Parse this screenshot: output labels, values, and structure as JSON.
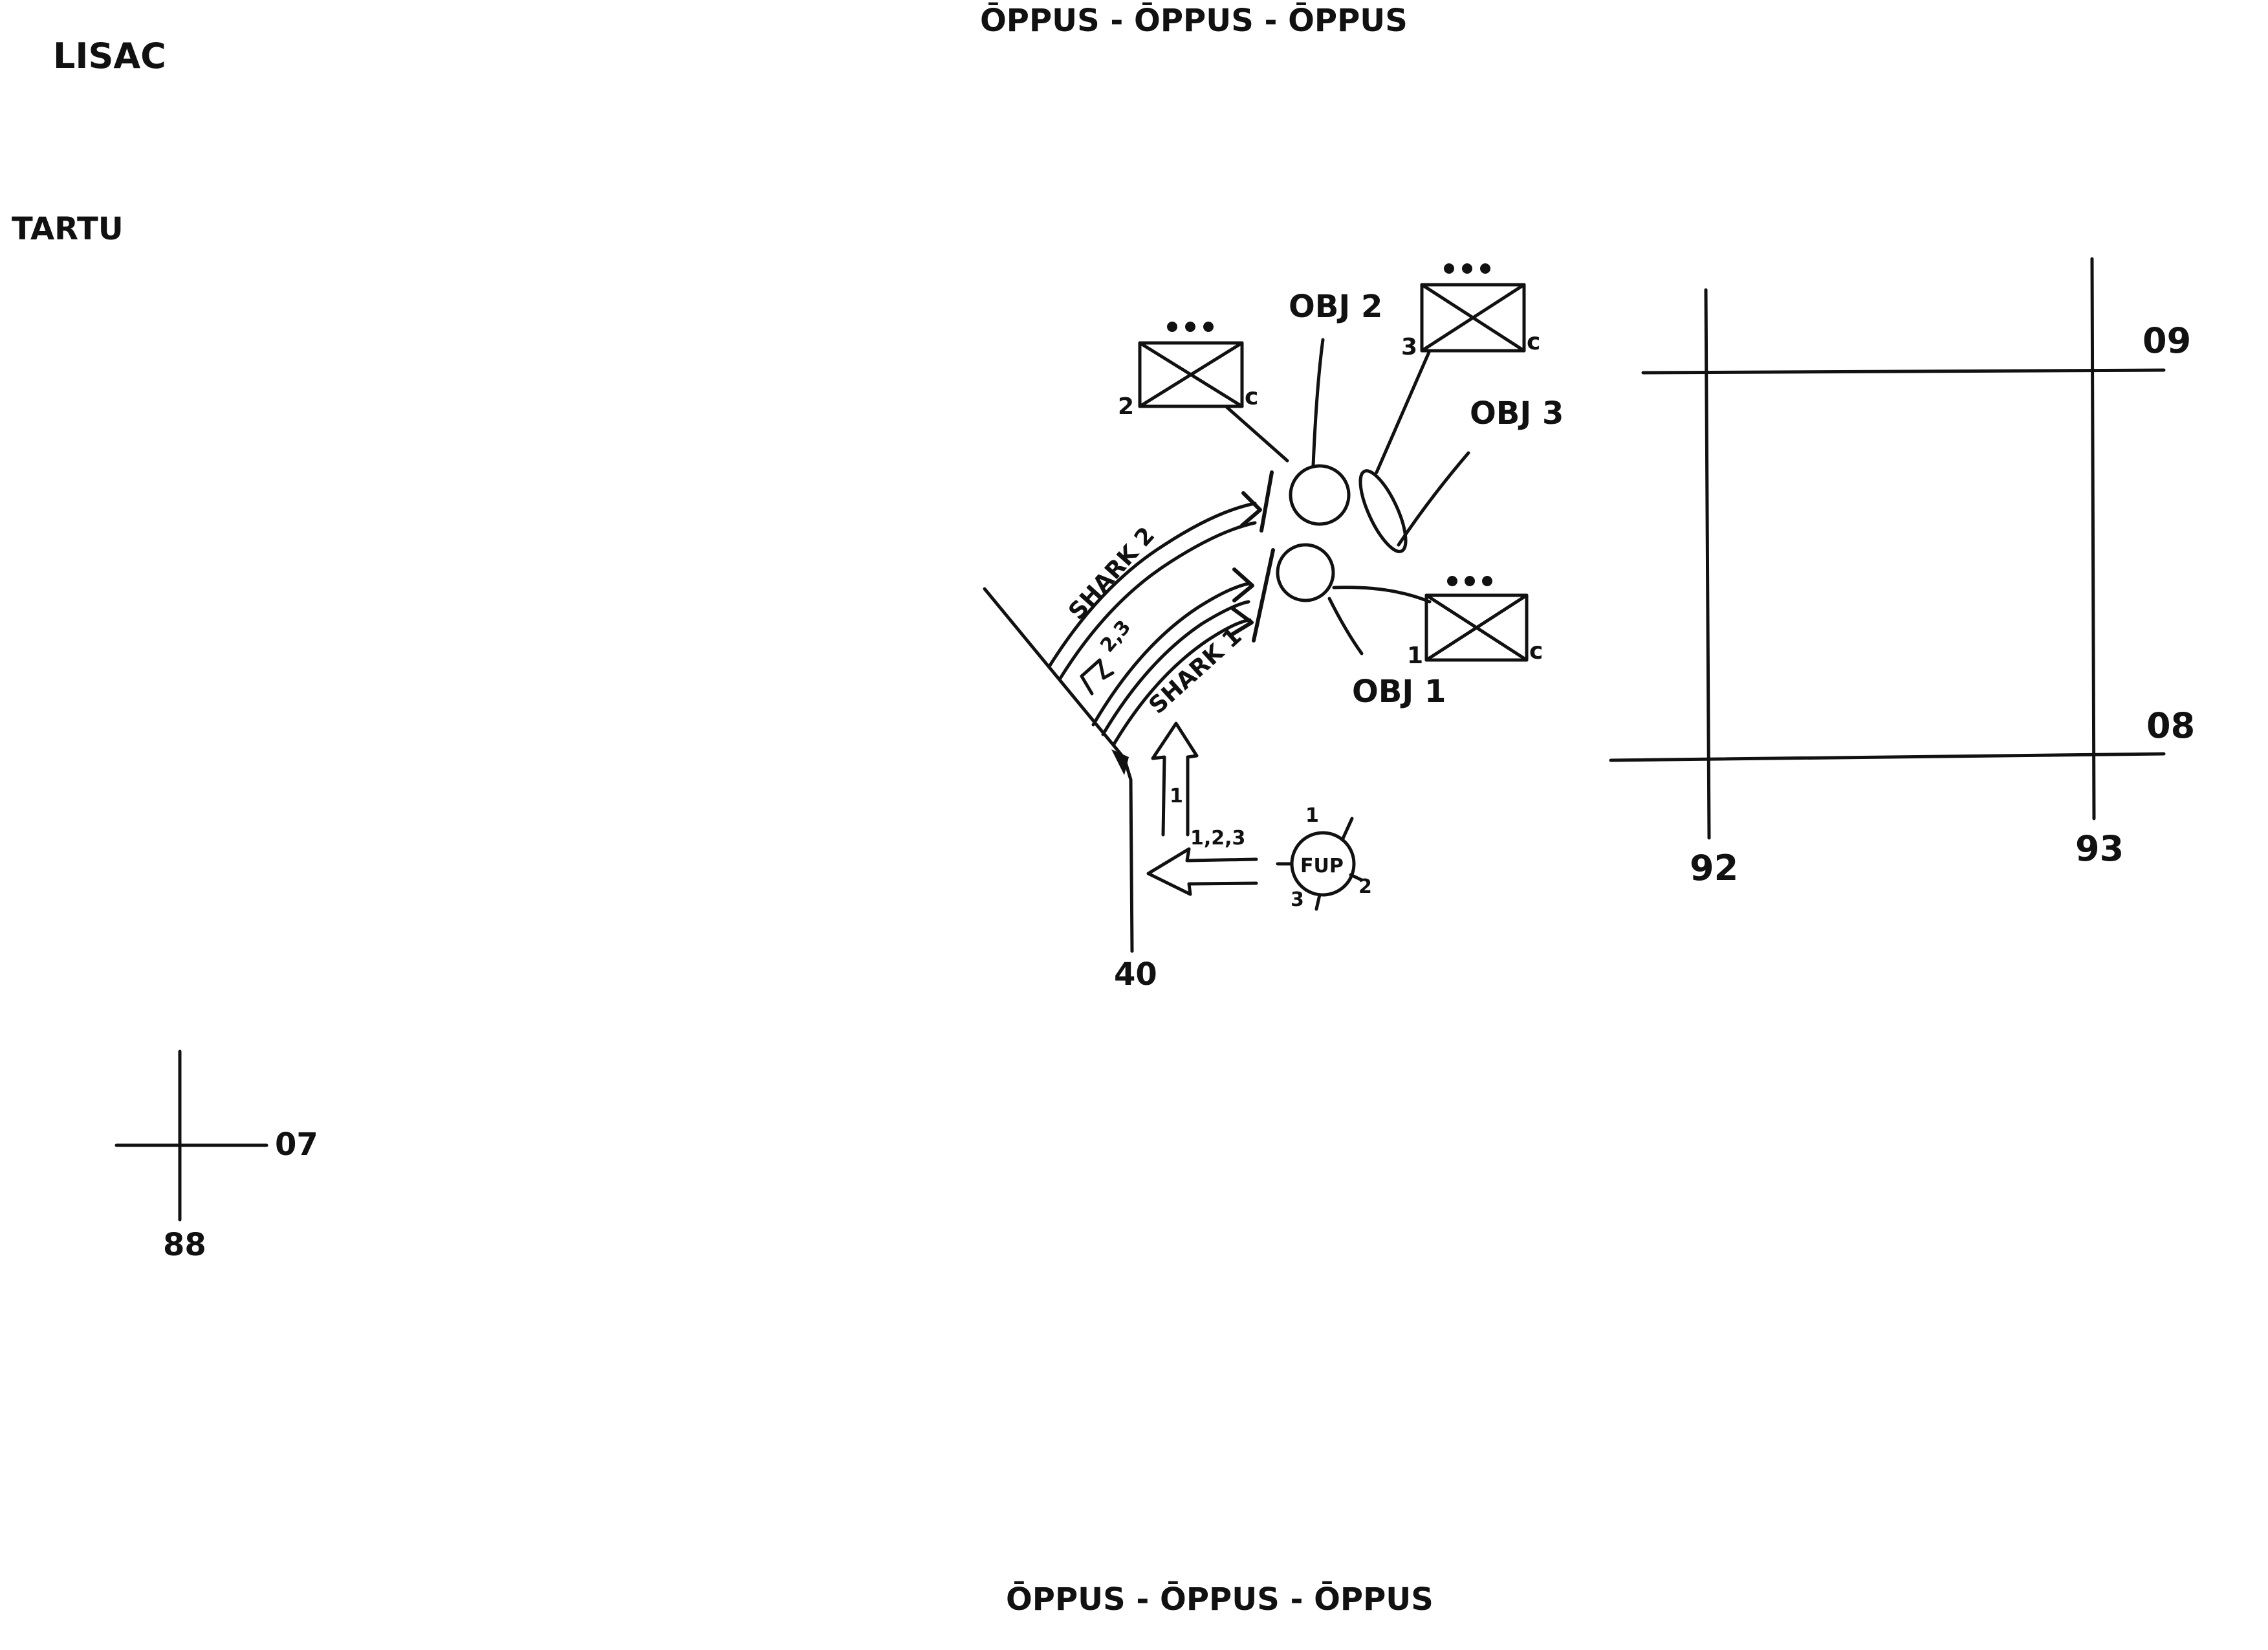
{
  "header": {
    "top_banner": "ŌPPUS - ŌPPUS - ŌPPUS"
  },
  "footer": {
    "bottom_banner": "ŌPPUS - ŌPPUS - ŌPPUS"
  },
  "labels": {
    "left_top": "LISAC",
    "left_second": "TARTU"
  },
  "symbology": {
    "obj1": "OBJ 1",
    "obj2": "OBJ 2",
    "obj3": "OBJ 3",
    "shark1": "SHARK 1",
    "shark2": "SHARK 2",
    "unit_c": "c",
    "unit1_num": "1",
    "unit2_num": "2",
    "unit3_num": "3",
    "arrow_1": "1",
    "arrow_23": "2,3",
    "arrow_123": "1,2,3",
    "fup": "FUP",
    "fup_1": "1",
    "fup_2": "2",
    "fup_3": "3",
    "boundary_40": "40"
  },
  "grid": {
    "right_top_northing": "09",
    "right_bottom_northing": "08",
    "right_left_easting": "92",
    "right_right_easting": "93",
    "small_northing": "07",
    "small_easting": "88"
  },
  "colors": {
    "ink": "#111111",
    "paper": "#ffffff"
  }
}
